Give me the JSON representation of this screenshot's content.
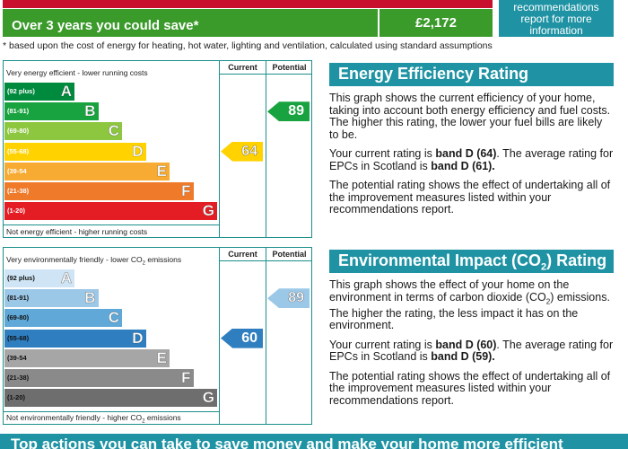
{
  "savings": {
    "label": "Over 3 years you could save*",
    "value": "£2,172",
    "side_note": "recommendations report for more information"
  },
  "footnote": "* based upon the cost of energy for heating, hot water, lighting and ventilation, calculated using standard assumptions",
  "energy_chart": {
    "header_current": "Current",
    "header_potential": "Potential",
    "top_caption": "Very energy efficient - lower running costs",
    "bottom_caption": "Not energy efficient - higher running costs",
    "bands": [
      {
        "range": "(92 plus)",
        "letter": "A",
        "color": "#008a3e"
      },
      {
        "range": "(81-91)",
        "letter": "B",
        "color": "#19a340"
      },
      {
        "range": "(69-80)",
        "letter": "C",
        "color": "#8dc63f"
      },
      {
        "range": "(55-68)",
        "letter": "D",
        "color": "#ffd200"
      },
      {
        "range": "(39-54",
        "letter": "E",
        "color": "#f7ab32"
      },
      {
        "range": "(21-38)",
        "letter": "F",
        "color": "#ef7a2a"
      },
      {
        "range": "(1-20)",
        "letter": "G",
        "color": "#e31d23"
      }
    ],
    "current": {
      "value": 64,
      "text": "64",
      "band": "D",
      "color": "#ffd200"
    },
    "potential": {
      "value": 89,
      "text": "89",
      "band": "B",
      "color": "#19a340"
    }
  },
  "env_chart": {
    "header_current": "Current",
    "header_potential": "Potential",
    "top_caption_pre": "Very environmentally friendly - lower CO",
    "top_caption_sub": "2",
    "top_caption_post": " emissions",
    "bottom_caption_pre": "Not environmentally friendly - higher CO",
    "bottom_caption_sub": "2",
    "bottom_caption_post": " emissions",
    "bands": [
      {
        "range": "(92 plus)",
        "letter": "A",
        "color": "#cfe5f5"
      },
      {
        "range": "(81-91)",
        "letter": "B",
        "color": "#9cc8e8"
      },
      {
        "range": "(69-80)",
        "letter": "C",
        "color": "#5fa8d8"
      },
      {
        "range": "(55-68)",
        "letter": "D",
        "color": "#2f7fc0"
      },
      {
        "range": "(39-54",
        "letter": "E",
        "color": "#a6a6a6"
      },
      {
        "range": "(21-38)",
        "letter": "F",
        "color": "#8a8a8a"
      },
      {
        "range": "(1-20)",
        "letter": "G",
        "color": "#6e6e6e"
      }
    ],
    "current": {
      "value": 60,
      "text": "60",
      "band": "D",
      "color": "#2f7fc0"
    },
    "potential": {
      "value": 89,
      "text": "89",
      "band": "B",
      "color": "#9cc8e8"
    }
  },
  "eer_panel": {
    "title": "Energy Efficiency Rating",
    "p1": "This graph shows the current efficiency of your home, taking into account both energy efficiency and fuel costs. The higher this rating, the lower your fuel bills are likely to be.",
    "p2_pre": "Your current rating is ",
    "p2_bold1": "band D (64)",
    "p2_mid": ". The average rating for EPCs in Scotland is ",
    "p2_bold2": "band D (61).",
    "p3": "The potential rating shows the effect of undertaking all of the improvement measures listed within your recommendations report."
  },
  "eir_panel": {
    "title_pre": "Environmental Impact (CO",
    "title_sub": "2",
    "title_post": ") Rating",
    "p1_pre": "This graph shows the effect of your home on the environment in terms of carbon dioxide (CO",
    "p1_sub": "2",
    "p1_post": ") emissions. The higher the rating, the less impact it has on the environment.",
    "p2_pre": "Your current rating is ",
    "p2_bold1": "band D (60)",
    "p2_mid": ". The average rating for EPCs in Scotland is ",
    "p2_bold2": "band D (59).",
    "p3": "The potential rating shows the effect of undertaking all of the improvement measures listed within your recommendations report."
  },
  "bottom_banner": "Top actions you can take to save money and make your home more efficient"
}
